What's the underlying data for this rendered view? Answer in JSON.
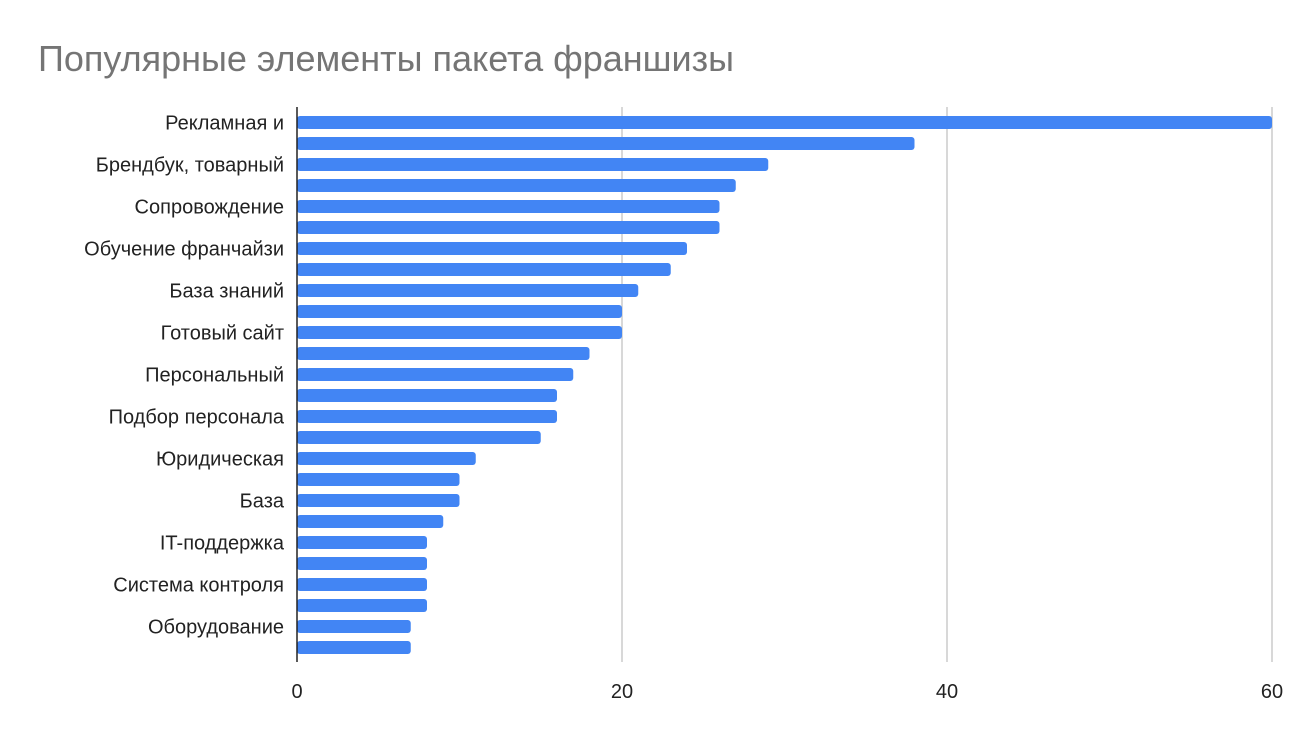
{
  "chart_data": {
    "type": "bar",
    "orientation": "horizontal",
    "title": "Популярные элементы пакета франшизы",
    "xlabel": "",
    "ylabel": "",
    "xlim": [
      0,
      60
    ],
    "x_ticks": [
      "0",
      "20",
      "40",
      "60"
    ],
    "grid": "vertical",
    "legend": "none",
    "bar_color": "#4285f4",
    "categories": [
      "Рекламная и",
      "",
      "Брендбук, товарный",
      "",
      "Сопровождение",
      "",
      "Обучение франчайзи",
      "",
      "База знаний",
      "",
      "Готовый сайт",
      "",
      "Персональный",
      "",
      "Подбор персонала",
      "",
      "Юридическая",
      "",
      "База",
      "",
      "IT-поддержка",
      "",
      "Система контроля",
      "",
      "Оборудование",
      ""
    ],
    "values": [
      60,
      38,
      29,
      27,
      26,
      26,
      24,
      23,
      21,
      20,
      20,
      18,
      17,
      16,
      16,
      15,
      11,
      10,
      10,
      9,
      8,
      8,
      8,
      8,
      7,
      7
    ]
  }
}
